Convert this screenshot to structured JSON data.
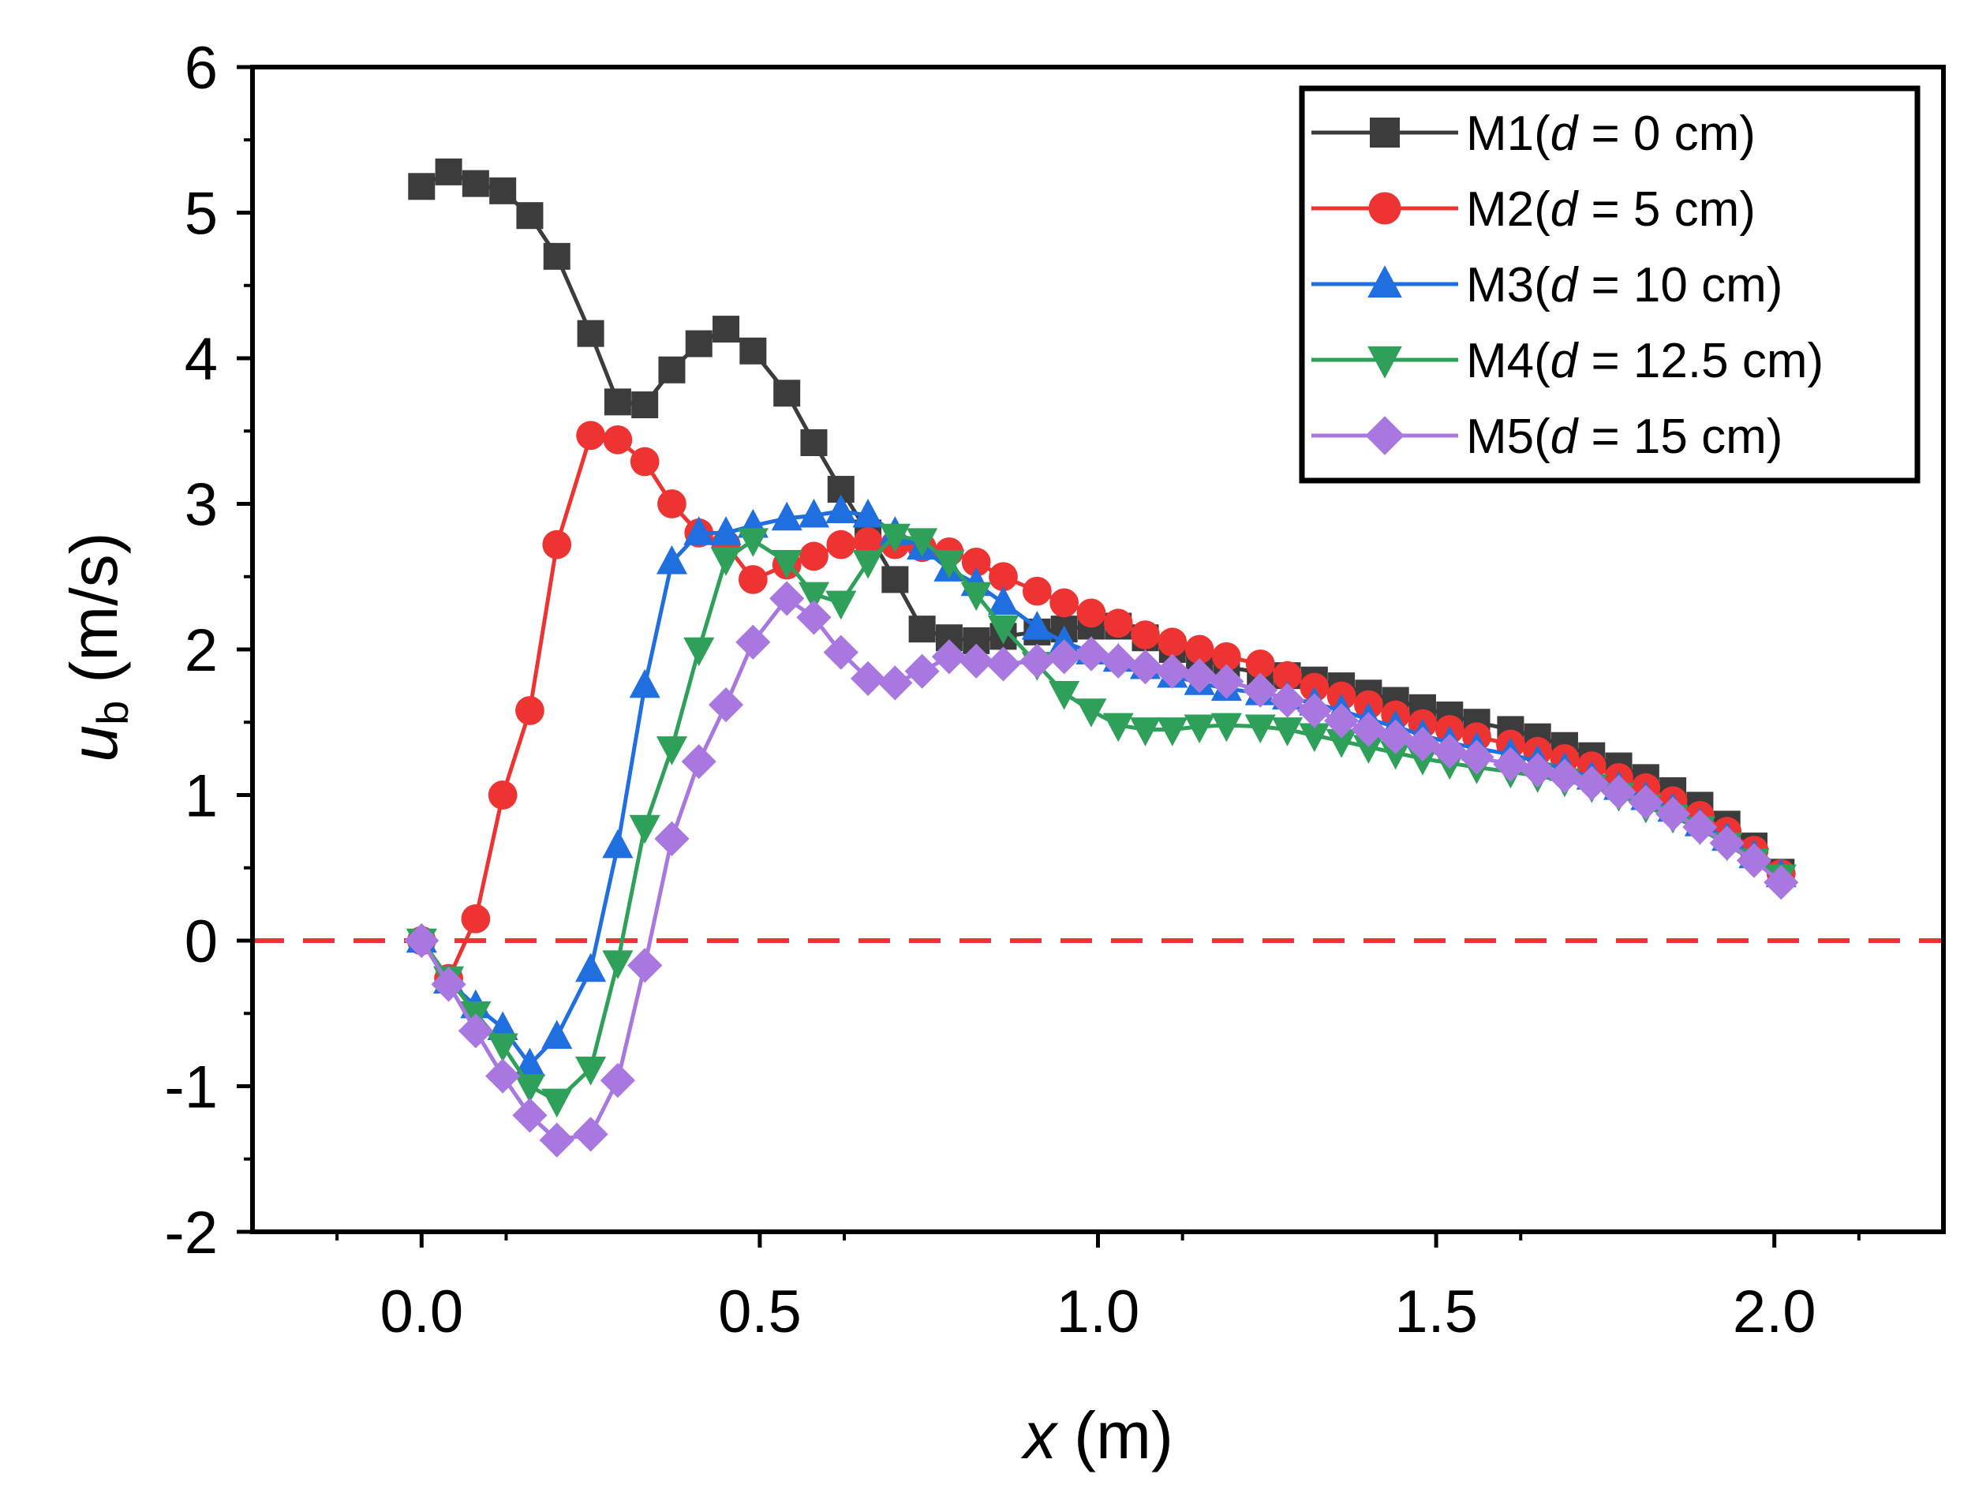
{
  "chart_data": {
    "type": "line",
    "title": "",
    "xlabel": {
      "var": "x",
      "unit": "(m)"
    },
    "ylabel": {
      "var": "u",
      "sub": "b",
      "unit": "(m/s)"
    },
    "xlim": [
      -0.25,
      2.25
    ],
    "ylim": [
      -2,
      6
    ],
    "xticks": [
      0.0,
      0.5,
      1.0,
      1.5,
      2.0
    ],
    "xtick_labels": [
      "0.0",
      "0.5",
      "1.0",
      "1.5",
      "2.0"
    ],
    "yticks": [
      -2,
      -1,
      0,
      1,
      2,
      3,
      4,
      5,
      6
    ],
    "ytick_labels": [
      "-2",
      "-1",
      "0",
      "1",
      "2",
      "3",
      "4",
      "5",
      "6"
    ],
    "grid": false,
    "legend_position": "top-right",
    "reference_line": {
      "y": 0,
      "style": "dashed",
      "color": "#ee3333"
    },
    "series": [
      {
        "name": "M1",
        "legend_prefix": "M1(",
        "legend_var": "d",
        "legend_suffix": " = 0 cm)",
        "color": "#3c3c3c",
        "marker": "square",
        "x": [
          0.0,
          0.04,
          0.08,
          0.12,
          0.16,
          0.2,
          0.25,
          0.29,
          0.33,
          0.37,
          0.41,
          0.45,
          0.49,
          0.54,
          0.58,
          0.62,
          0.66,
          0.7,
          0.74,
          0.78,
          0.82,
          0.86,
          0.91,
          0.95,
          0.99,
          1.03,
          1.07,
          1.11,
          1.15,
          1.19,
          1.24,
          1.28,
          1.32,
          1.36,
          1.4,
          1.44,
          1.48,
          1.52,
          1.56,
          1.61,
          1.65,
          1.69,
          1.73,
          1.77,
          1.81,
          1.85,
          1.89,
          1.93,
          1.97,
          2.01
        ],
        "y": [
          5.18,
          5.28,
          5.2,
          5.15,
          4.98,
          4.7,
          4.17,
          3.7,
          3.68,
          3.92,
          4.1,
          4.2,
          4.05,
          3.76,
          3.42,
          3.1,
          2.8,
          2.48,
          2.14,
          2.08,
          2.06,
          2.09,
          2.12,
          2.14,
          2.16,
          2.16,
          2.08,
          2.0,
          1.94,
          1.88,
          1.84,
          1.82,
          1.79,
          1.75,
          1.7,
          1.65,
          1.6,
          1.55,
          1.5,
          1.45,
          1.4,
          1.34,
          1.27,
          1.2,
          1.12,
          1.03,
          0.93,
          0.8,
          0.65,
          0.47
        ]
      },
      {
        "name": "M2",
        "legend_prefix": "M2(",
        "legend_var": "d",
        "legend_suffix": " = 5 cm)",
        "color": "#ee3333",
        "marker": "circle",
        "x": [
          0.0,
          0.04,
          0.08,
          0.12,
          0.16,
          0.2,
          0.25,
          0.29,
          0.33,
          0.37,
          0.41,
          0.45,
          0.49,
          0.54,
          0.58,
          0.62,
          0.66,
          0.7,
          0.74,
          0.78,
          0.82,
          0.86,
          0.91,
          0.95,
          0.99,
          1.03,
          1.07,
          1.11,
          1.15,
          1.19,
          1.24,
          1.28,
          1.32,
          1.36,
          1.4,
          1.44,
          1.48,
          1.52,
          1.56,
          1.61,
          1.65,
          1.69,
          1.73,
          1.77,
          1.81,
          1.85,
          1.89,
          1.93,
          1.97,
          2.01
        ],
        "y": [
          0.0,
          -0.26,
          0.15,
          1.0,
          1.58,
          2.72,
          3.47,
          3.44,
          3.29,
          3.0,
          2.8,
          2.72,
          2.48,
          2.58,
          2.64,
          2.72,
          2.74,
          2.72,
          2.7,
          2.67,
          2.6,
          2.5,
          2.4,
          2.32,
          2.25,
          2.18,
          2.1,
          2.05,
          2.0,
          1.95,
          1.9,
          1.82,
          1.74,
          1.68,
          1.62,
          1.55,
          1.49,
          1.45,
          1.4,
          1.35,
          1.3,
          1.25,
          1.2,
          1.12,
          1.05,
          0.96,
          0.86,
          0.75,
          0.62,
          0.46
        ]
      },
      {
        "name": "M3",
        "legend_prefix": "M3(",
        "legend_var": "d",
        "legend_suffix": " = 10 cm)",
        "color": "#1f6fe0",
        "marker": "triangle-up",
        "x": [
          0.0,
          0.04,
          0.08,
          0.12,
          0.16,
          0.2,
          0.25,
          0.29,
          0.33,
          0.37,
          0.41,
          0.45,
          0.49,
          0.54,
          0.58,
          0.62,
          0.66,
          0.7,
          0.74,
          0.78,
          0.82,
          0.86,
          0.91,
          0.95,
          0.99,
          1.03,
          1.07,
          1.11,
          1.15,
          1.19,
          1.24,
          1.28,
          1.32,
          1.36,
          1.4,
          1.44,
          1.48,
          1.52,
          1.56,
          1.61,
          1.65,
          1.69,
          1.73,
          1.77,
          1.81,
          1.85,
          1.89,
          1.93,
          1.97,
          2.01
        ],
        "y": [
          0.0,
          -0.28,
          -0.45,
          -0.6,
          -0.85,
          -0.66,
          -0.2,
          0.65,
          1.75,
          2.6,
          2.8,
          2.8,
          2.85,
          2.9,
          2.92,
          2.95,
          2.92,
          2.8,
          2.7,
          2.55,
          2.45,
          2.32,
          2.15,
          2.05,
          1.98,
          1.93,
          1.88,
          1.82,
          1.77,
          1.73,
          1.7,
          1.67,
          1.63,
          1.58,
          1.52,
          1.47,
          1.41,
          1.36,
          1.32,
          1.28,
          1.23,
          1.18,
          1.12,
          1.05,
          0.98,
          0.9,
          0.8,
          0.7,
          0.58,
          0.45
        ]
      },
      {
        "name": "M4",
        "legend_prefix": "M4(",
        "legend_var": "d",
        "legend_suffix": " = 12.5 cm)",
        "color": "#2ea05a",
        "marker": "triangle-down",
        "x": [
          0.0,
          0.04,
          0.08,
          0.12,
          0.16,
          0.2,
          0.25,
          0.29,
          0.33,
          0.37,
          0.41,
          0.45,
          0.49,
          0.54,
          0.58,
          0.62,
          0.66,
          0.7,
          0.74,
          0.78,
          0.82,
          0.86,
          0.91,
          0.95,
          0.99,
          1.03,
          1.07,
          1.11,
          1.15,
          1.19,
          1.24,
          1.28,
          1.32,
          1.36,
          1.4,
          1.44,
          1.48,
          1.52,
          1.56,
          1.61,
          1.65,
          1.69,
          1.73,
          1.77,
          1.81,
          1.85,
          1.89,
          1.93,
          1.97,
          2.01
        ],
        "y": [
          0.0,
          -0.26,
          -0.5,
          -0.72,
          -1.0,
          -1.1,
          -0.88,
          -0.15,
          0.78,
          1.32,
          2.0,
          2.62,
          2.75,
          2.6,
          2.38,
          2.32,
          2.6,
          2.78,
          2.75,
          2.6,
          2.38,
          2.15,
          1.9,
          1.7,
          1.58,
          1.48,
          1.45,
          1.45,
          1.47,
          1.48,
          1.47,
          1.45,
          1.41,
          1.37,
          1.33,
          1.29,
          1.25,
          1.22,
          1.19,
          1.16,
          1.13,
          1.1,
          1.06,
          1.0,
          0.92,
          0.85,
          0.77,
          0.66,
          0.55,
          0.44
        ]
      },
      {
        "name": "M5",
        "legend_prefix": "M5(",
        "legend_var": "d",
        "legend_suffix": " = 15 cm)",
        "color": "#a878e0",
        "marker": "diamond",
        "x": [
          0.0,
          0.04,
          0.08,
          0.12,
          0.16,
          0.2,
          0.25,
          0.29,
          0.33,
          0.37,
          0.41,
          0.45,
          0.49,
          0.54,
          0.58,
          0.62,
          0.66,
          0.7,
          0.74,
          0.78,
          0.82,
          0.86,
          0.91,
          0.95,
          0.99,
          1.03,
          1.07,
          1.11,
          1.15,
          1.19,
          1.24,
          1.28,
          1.32,
          1.36,
          1.4,
          1.44,
          1.48,
          1.52,
          1.56,
          1.61,
          1.65,
          1.69,
          1.73,
          1.77,
          1.81,
          1.85,
          1.89,
          1.93,
          1.97,
          2.01
        ],
        "y": [
          0.0,
          -0.3,
          -0.62,
          -0.93,
          -1.2,
          -1.37,
          -1.33,
          -0.96,
          -0.17,
          0.7,
          1.23,
          1.62,
          2.05,
          2.35,
          2.22,
          1.98,
          1.8,
          1.77,
          1.85,
          1.95,
          1.92,
          1.9,
          1.92,
          1.95,
          1.97,
          1.92,
          1.88,
          1.85,
          1.82,
          1.78,
          1.72,
          1.65,
          1.58,
          1.51,
          1.45,
          1.4,
          1.35,
          1.3,
          1.26,
          1.21,
          1.17,
          1.13,
          1.08,
          1.02,
          0.95,
          0.87,
          0.78,
          0.67,
          0.55,
          0.4
        ]
      }
    ]
  }
}
